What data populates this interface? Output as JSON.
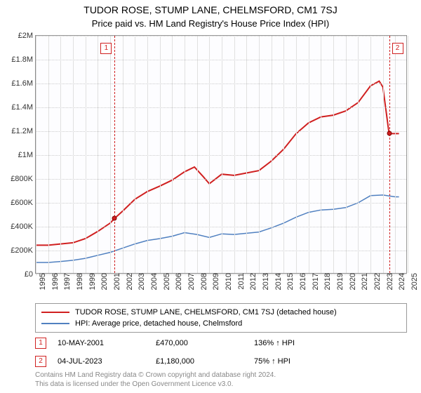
{
  "title": "TUDOR ROSE, STUMP LANE, CHELMSFORD, CM1 7SJ",
  "subtitle": "Price paid vs. HM Land Registry's House Price Index (HPI)",
  "chart": {
    "type": "line",
    "background_color": "#fdfdff",
    "grid_color_h": "#cccccc",
    "grid_color_v": "#e0e0e0",
    "x_range": [
      1995,
      2025
    ],
    "y_range": [
      0,
      2000000
    ],
    "y_ticks": [
      {
        "v": 0,
        "label": "£0"
      },
      {
        "v": 200000,
        "label": "£200K"
      },
      {
        "v": 400000,
        "label": "£400K"
      },
      {
        "v": 600000,
        "label": "£600K"
      },
      {
        "v": 800000,
        "label": "£800K"
      },
      {
        "v": 1000000,
        "label": "£1M"
      },
      {
        "v": 1200000,
        "label": "£1.2M"
      },
      {
        "v": 1400000,
        "label": "£1.4M"
      },
      {
        "v": 1600000,
        "label": "£1.6M"
      },
      {
        "v": 1800000,
        "label": "£1.8M"
      },
      {
        "v": 2000000,
        "label": "£2M"
      }
    ],
    "x_ticks": [
      1995,
      1996,
      1997,
      1998,
      1999,
      2000,
      2001,
      2002,
      2003,
      2004,
      2005,
      2006,
      2007,
      2008,
      2009,
      2010,
      2011,
      2012,
      2013,
      2014,
      2015,
      2016,
      2017,
      2018,
      2019,
      2020,
      2021,
      2022,
      2023,
      2024,
      2025
    ],
    "series": [
      {
        "id": "price_paid",
        "label": "TUDOR ROSE, STUMP LANE, CHELMSFORD, CM1 7SJ (detached house)",
        "color": "#d02020",
        "line_width": 2,
        "points": [
          [
            1995,
            245000
          ],
          [
            1996,
            245000
          ],
          [
            1997,
            255000
          ],
          [
            1998,
            265000
          ],
          [
            1999,
            300000
          ],
          [
            2000,
            360000
          ],
          [
            2001,
            430000
          ],
          [
            2001.36,
            470000
          ],
          [
            2002,
            530000
          ],
          [
            2003,
            630000
          ],
          [
            2004,
            695000
          ],
          [
            2005,
            740000
          ],
          [
            2006,
            790000
          ],
          [
            2007,
            860000
          ],
          [
            2007.8,
            900000
          ],
          [
            2008.5,
            820000
          ],
          [
            2009,
            760000
          ],
          [
            2010,
            840000
          ],
          [
            2011,
            830000
          ],
          [
            2012,
            850000
          ],
          [
            2013,
            870000
          ],
          [
            2014,
            950000
          ],
          [
            2015,
            1050000
          ],
          [
            2016,
            1180000
          ],
          [
            2017,
            1270000
          ],
          [
            2018,
            1320000
          ],
          [
            2019,
            1335000
          ],
          [
            2020,
            1370000
          ],
          [
            2021,
            1440000
          ],
          [
            2022,
            1580000
          ],
          [
            2022.7,
            1620000
          ],
          [
            2023,
            1570000
          ],
          [
            2023.5,
            1180000
          ],
          [
            2024.3,
            1180000
          ]
        ]
      },
      {
        "id": "hpi",
        "label": "HPI: Average price, detached house, Chelmsford",
        "color": "#5080c0",
        "line_width": 1.5,
        "points": [
          [
            1995,
            100000
          ],
          [
            1996,
            100000
          ],
          [
            1997,
            108000
          ],
          [
            1998,
            118000
          ],
          [
            1999,
            135000
          ],
          [
            2000,
            160000
          ],
          [
            2001,
            185000
          ],
          [
            2002,
            220000
          ],
          [
            2003,
            255000
          ],
          [
            2004,
            285000
          ],
          [
            2005,
            300000
          ],
          [
            2006,
            320000
          ],
          [
            2007,
            350000
          ],
          [
            2008,
            335000
          ],
          [
            2009,
            310000
          ],
          [
            2010,
            340000
          ],
          [
            2011,
            335000
          ],
          [
            2012,
            345000
          ],
          [
            2013,
            355000
          ],
          [
            2014,
            390000
          ],
          [
            2015,
            430000
          ],
          [
            2016,
            480000
          ],
          [
            2017,
            520000
          ],
          [
            2018,
            540000
          ],
          [
            2019,
            545000
          ],
          [
            2020,
            560000
          ],
          [
            2021,
            600000
          ],
          [
            2022,
            660000
          ],
          [
            2023,
            665000
          ],
          [
            2024,
            650000
          ],
          [
            2024.3,
            650000
          ]
        ]
      }
    ],
    "markers": [
      {
        "n": "1",
        "x": 2001.36,
        "y": 470000,
        "color": "#d02020",
        "date": "10-MAY-2001",
        "price": "£470,000",
        "delta": "136% ↑ HPI"
      },
      {
        "n": "2",
        "x": 2023.5,
        "y": 1180000,
        "color": "#d02020",
        "date": "04-JUL-2023",
        "price": "£1,180,000",
        "delta": "75% ↑ HPI"
      }
    ]
  },
  "legend": {
    "series1_label": "TUDOR ROSE, STUMP LANE, CHELMSFORD, CM1 7SJ (detached house)",
    "series1_color": "#d02020",
    "series2_label": "HPI: Average price, detached house, Chelmsford",
    "series2_color": "#5080c0"
  },
  "footer": {
    "line1": "Contains HM Land Registry data © Crown copyright and database right 2024.",
    "line2": "This data is licensed under the Open Government Licence v3.0."
  }
}
